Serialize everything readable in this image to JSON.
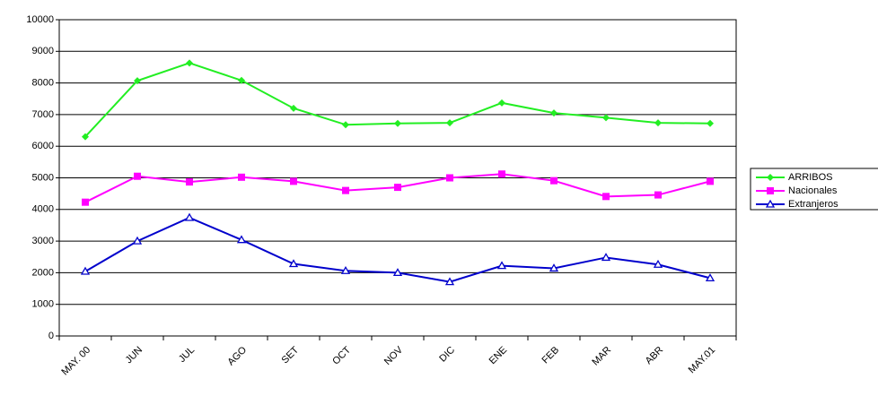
{
  "chart_data": {
    "type": "line",
    "categories": [
      "MAY. 00",
      "JUN",
      "JUL",
      "AGO",
      "SET",
      "OCT",
      "NOV",
      "DIC",
      "ENE",
      "FEB",
      "MAR",
      "ABR",
      "MAY.01"
    ],
    "series": [
      {
        "name": "ARRIBOS",
        "color": "#22ee22",
        "marker": "diamond",
        "values": [
          6300,
          8070,
          8630,
          8080,
          7200,
          6680,
          6720,
          6740,
          7370,
          7050,
          6900,
          6740,
          6720
        ]
      },
      {
        "name": "Nacionales",
        "color": "#ff00ff",
        "marker": "square",
        "values": [
          4230,
          5050,
          4870,
          5020,
          4890,
          4600,
          4700,
          5000,
          5120,
          4910,
          4410,
          4460,
          4890
        ]
      },
      {
        "name": "Extranjeros",
        "color": "#0000cc",
        "marker": "triangle",
        "values": [
          2040,
          3000,
          3740,
          3040,
          2280,
          2060,
          2000,
          1710,
          2220,
          2140,
          2480,
          2260,
          1830
        ]
      }
    ],
    "ylim": [
      0,
      10000
    ],
    "yticks": [
      0,
      1000,
      2000,
      3000,
      4000,
      5000,
      6000,
      7000,
      8000,
      9000,
      10000
    ],
    "grid": true,
    "legend": "right"
  }
}
